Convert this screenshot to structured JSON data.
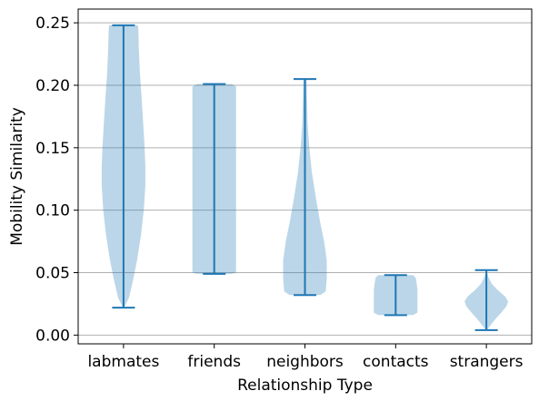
{
  "chart_data": {
    "type": "violin",
    "title": "",
    "xlabel": "Relationship Type",
    "ylabel": "Mobility Similarity",
    "ylim": [
      -0.007,
      0.261
    ],
    "yticks": [
      0.0,
      0.05,
      0.1,
      0.15,
      0.2,
      0.25
    ],
    "ytick_labels": [
      "0.00",
      "0.05",
      "0.10",
      "0.15",
      "0.20",
      "0.25"
    ],
    "grid": "horizontal",
    "colors": {
      "fill": "#1f77b4",
      "fill_opacity": 0.3,
      "line": "#1f77b4",
      "grid": "#b0b0b0"
    },
    "categories": [
      "labmates",
      "friends",
      "neighbors",
      "contacts",
      "strangers"
    ],
    "violins": [
      {
        "name": "labmates",
        "min": 0.022,
        "max": 0.248,
        "profile": [
          [
            0.022,
            0.03
          ],
          [
            0.03,
            0.25
          ],
          [
            0.045,
            0.45
          ],
          [
            0.06,
            0.62
          ],
          [
            0.08,
            0.8
          ],
          [
            0.1,
            0.93
          ],
          [
            0.12,
            1.0
          ],
          [
            0.135,
            1.0
          ],
          [
            0.15,
            0.97
          ],
          [
            0.17,
            0.9
          ],
          [
            0.19,
            0.83
          ],
          [
            0.21,
            0.75
          ],
          [
            0.23,
            0.7
          ],
          [
            0.245,
            0.68
          ],
          [
            0.248,
            0.66
          ]
        ]
      },
      {
        "name": "friends",
        "min": 0.049,
        "max": 0.201,
        "profile": [
          [
            0.049,
            0.8
          ],
          [
            0.05,
            1.0
          ],
          [
            0.07,
            1.0
          ],
          [
            0.1,
            1.0
          ],
          [
            0.13,
            1.0
          ],
          [
            0.16,
            1.0
          ],
          [
            0.19,
            1.0
          ],
          [
            0.199,
            1.0
          ],
          [
            0.201,
            0.8
          ]
        ]
      },
      {
        "name": "neighbors",
        "min": 0.032,
        "max": 0.205,
        "profile": [
          [
            0.032,
            0.7
          ],
          [
            0.035,
            0.95
          ],
          [
            0.045,
            1.0
          ],
          [
            0.06,
            1.0
          ],
          [
            0.075,
            0.88
          ],
          [
            0.09,
            0.7
          ],
          [
            0.11,
            0.5
          ],
          [
            0.13,
            0.32
          ],
          [
            0.15,
            0.2
          ],
          [
            0.17,
            0.12
          ],
          [
            0.19,
            0.09
          ],
          [
            0.203,
            0.08
          ],
          [
            0.205,
            0.06
          ]
        ]
      },
      {
        "name": "contacts",
        "min": 0.016,
        "max": 0.048,
        "profile": [
          [
            0.016,
            0.8
          ],
          [
            0.018,
            1.0
          ],
          [
            0.024,
            1.0
          ],
          [
            0.03,
            1.0
          ],
          [
            0.036,
            1.0
          ],
          [
            0.042,
            0.96
          ],
          [
            0.046,
            0.92
          ],
          [
            0.048,
            0.8
          ]
        ]
      },
      {
        "name": "strangers",
        "min": 0.004,
        "max": 0.052,
        "profile": [
          [
            0.004,
            0.02
          ],
          [
            0.008,
            0.2
          ],
          [
            0.013,
            0.42
          ],
          [
            0.018,
            0.68
          ],
          [
            0.023,
            0.92
          ],
          [
            0.027,
            1.0
          ],
          [
            0.031,
            0.86
          ],
          [
            0.036,
            0.52
          ],
          [
            0.041,
            0.25
          ],
          [
            0.046,
            0.1
          ],
          [
            0.052,
            0.0
          ]
        ]
      }
    ]
  }
}
